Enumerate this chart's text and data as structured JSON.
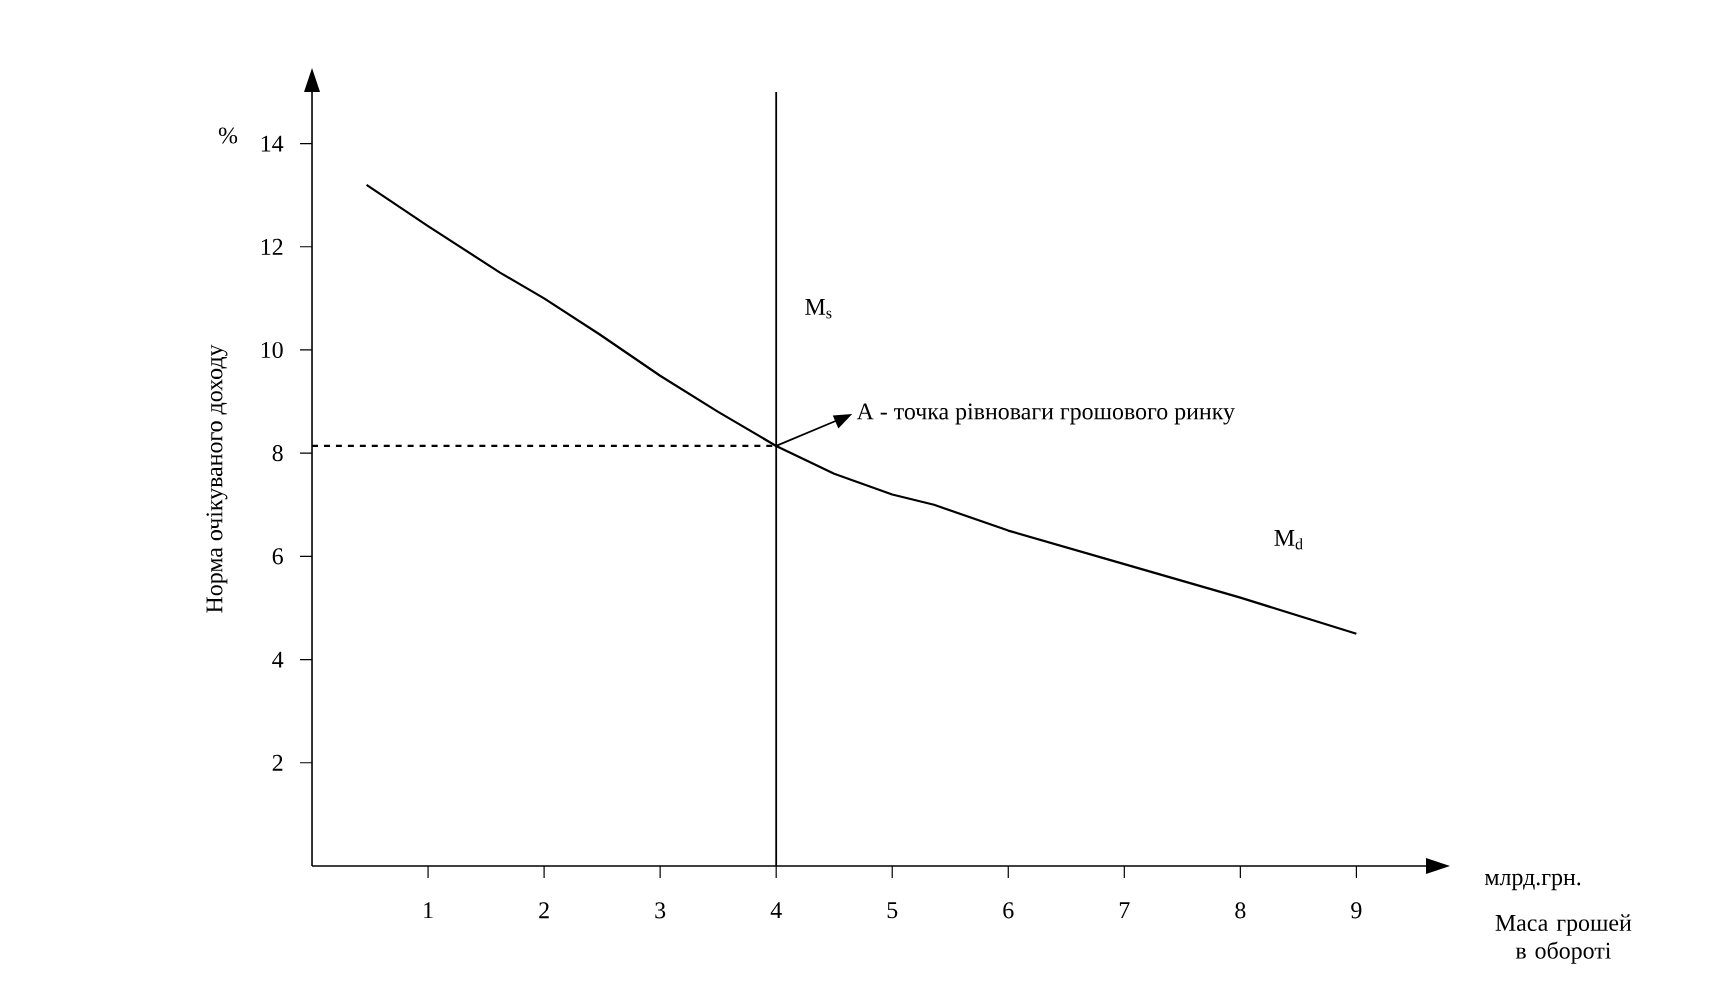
{
  "chart_data": {
    "type": "line",
    "xlabel": "Маса грошей в обороті",
    "ylabel": "Норма очікуваного доходу",
    "x": [
      0.47,
      1,
      1.62,
      2,
      2.48,
      3,
      3.5,
      4,
      4.5,
      5,
      5.36,
      6,
      7,
      8,
      9
    ],
    "series": [
      {
        "name": "M$_{d}$",
        "color": "#000000",
        "line_style": "solid",
        "values": [
          13.2,
          12.4,
          11.5,
          11.0,
          10.3,
          9.5,
          8.8,
          8.14,
          7.6,
          7.2,
          7.0,
          6.5,
          5.85,
          5.2,
          4.5
        ]
      },
      {
        "color": "#000000",
        "line_style": "dashed",
        "x": [
          0,
          4
        ],
        "values": [
          8.14,
          8.14
        ]
      }
    ],
    "ref_lines": [
      {
        "axis": "x",
        "value": 4,
        "label": "M$_{s}$",
        "color": "#000000",
        "line_style": "solid"
      }
    ],
    "annotations": [
      "%",
      "млрд.грн.",
      {
        "text": "A - точка рівноваги грошового ринку",
        "x": 4,
        "y": 8.14
      }
    ],
    "xlim": [
      0,
      9.6
    ],
    "ylim": [
      0,
      15
    ],
    "xticks": [
      1,
      2,
      3,
      4,
      5,
      6,
      7,
      8,
      9
    ],
    "yticks": [
      2,
      4,
      6,
      8,
      10,
      12,
      14
    ],
    "marker": "none",
    "grid": false
  }
}
